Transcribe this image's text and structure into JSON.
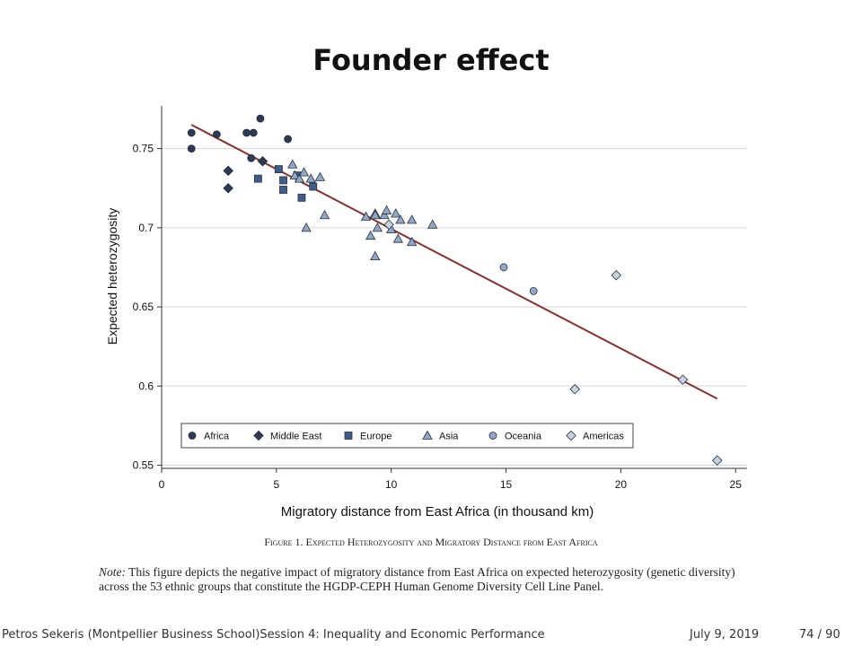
{
  "slide": {
    "title": "Founder effect",
    "caption": "Figure 1. Expected Heterozygosity and Migratory Distance from East Africa",
    "note_label": "Note:",
    "note_text": "This figure depicts the negative impact of migratory distance from East Africa on expected heterozygosity (genetic diversity) across the 53 ethnic groups that constitute the HGDP-CEPH Human Genome Diversity Cell Line Panel.",
    "footer_author": "Petros Sekeris  (Montpellier Business School)",
    "footer_session": "Session 4:  Inequality and Economic Performance",
    "footer_date": "July 9, 2019",
    "footer_page": "74 / 90"
  },
  "chart_data": {
    "type": "scatter",
    "title": "",
    "xlabel": "Migratory distance from East Africa (in thousand km)",
    "ylabel": "Expected heterozygosity",
    "xlim": [
      0,
      25.5
    ],
    "ylim": [
      0.548,
      0.777
    ],
    "xticks": [
      0,
      5,
      10,
      15,
      20,
      25
    ],
    "yticks": [
      0.55,
      0.6,
      0.65,
      0.7,
      0.75
    ],
    "ytick_labels": [
      "0.55",
      "0.6",
      "0.65",
      "0.7",
      "0.75"
    ],
    "grid": "horizontal",
    "legend_position": "bottom",
    "colors": {
      "marker_dark": "#2b3a55",
      "marker_mid": "#3f5d8a",
      "marker_light": "#8fa8c8",
      "marker_pale": "#c4d2e3",
      "fit_line": "#8b2e2e",
      "grid": "#d6d6d6"
    },
    "fit_line": {
      "x": [
        1.3,
        24.2
      ],
      "y": [
        0.765,
        0.592
      ]
    },
    "series": [
      {
        "name": "Africa",
        "marker": "circle",
        "color": "#2b3a55",
        "x": [
          1.3,
          1.3,
          2.4,
          3.7,
          3.9,
          4.0,
          4.3,
          5.5
        ],
        "y": [
          0.76,
          0.75,
          0.759,
          0.76,
          0.744,
          0.76,
          0.769,
          0.756
        ]
      },
      {
        "name": "Middle East",
        "marker": "diamond",
        "color": "#2b3a55",
        "x": [
          2.9,
          2.9,
          4.4
        ],
        "y": [
          0.736,
          0.725,
          0.742
        ]
      },
      {
        "name": "Europe",
        "marker": "square",
        "color": "#3f5d8a",
        "x": [
          4.2,
          5.1,
          5.3,
          5.3,
          5.9,
          6.1,
          6.6
        ],
        "y": [
          0.731,
          0.737,
          0.73,
          0.724,
          0.733,
          0.719,
          0.726
        ]
      },
      {
        "name": "Asia",
        "marker": "triangle",
        "color": "#8fa8c8",
        "x": [
          5.7,
          5.8,
          6.0,
          6.2,
          6.3,
          6.5,
          6.9,
          7.1,
          8.9,
          9.1,
          9.3,
          9.3,
          9.4,
          9.7,
          9.8,
          10.0,
          10.2,
          10.3,
          10.4,
          10.9,
          10.9,
          11.8,
          9.3
        ],
        "y": [
          0.74,
          0.733,
          0.731,
          0.735,
          0.7,
          0.731,
          0.732,
          0.708,
          0.707,
          0.695,
          0.709,
          0.682,
          0.7,
          0.708,
          0.711,
          0.699,
          0.709,
          0.693,
          0.705,
          0.705,
          0.691,
          0.702,
          0.708
        ]
      },
      {
        "name": "Oceania",
        "marker": "circle",
        "color": "#8fa8c8",
        "x": [
          14.9,
          16.2
        ],
        "y": [
          0.675,
          0.66
        ]
      },
      {
        "name": "Americas",
        "marker": "diamond",
        "color": "#c4d2e3",
        "x": [
          19.8,
          18.0,
          22.7,
          24.2,
          9.9
        ],
        "y": [
          0.67,
          0.598,
          0.604,
          0.553,
          0.702
        ]
      }
    ]
  }
}
